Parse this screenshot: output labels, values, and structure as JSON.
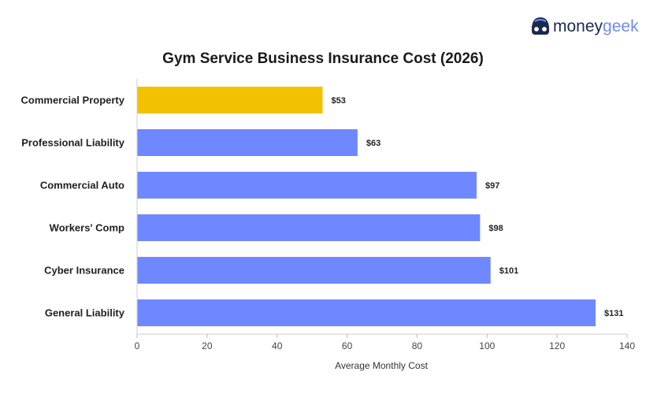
{
  "brand": {
    "name_part1": "money",
    "name_part2": "geek",
    "color1": "#1a2a4f",
    "color2": "#6f8cf7",
    "icon": "geek-face-logo-icon"
  },
  "chart_data": {
    "type": "bar",
    "orientation": "horizontal",
    "title": "Gym Service Business Insurance Cost (2026)",
    "xlabel": "Average Monthly Cost",
    "ylabel": "",
    "categories": [
      "Commercial Property",
      "Professional Liability",
      "Commercial Auto",
      "Workers' Comp",
      "Cyber Insurance",
      "General Liability"
    ],
    "values": [
      53,
      63,
      97,
      98,
      101,
      131
    ],
    "value_labels": [
      "$53",
      "$63",
      "$97",
      "$98",
      "$101",
      "$131"
    ],
    "bar_colors": [
      "#f2c200",
      "#7088ff",
      "#7088ff",
      "#7088ff",
      "#7088ff",
      "#7088ff"
    ],
    "xlim": [
      0,
      140
    ],
    "xticks": [
      0,
      20,
      40,
      60,
      80,
      100,
      120,
      140
    ],
    "grid": false,
    "legend": "none"
  }
}
